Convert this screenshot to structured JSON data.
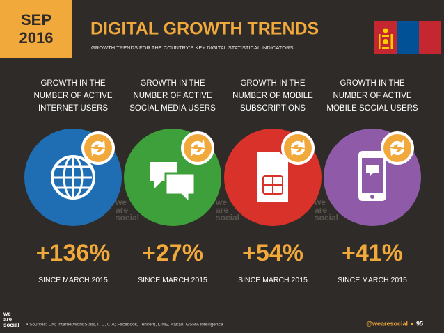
{
  "date": {
    "month": "SEP",
    "year": "2016"
  },
  "title": "DIGITAL GROWTH TRENDS",
  "subtitle": "GROWTH TRENDS FOR THE COUNTRY'S KEY DIGITAL STATISTICAL INDICATORS",
  "cards": [
    {
      "label": [
        "GROWTH IN THE",
        "NUMBER OF ACTIVE",
        "INTERNET USERS"
      ],
      "value": "+136%",
      "since": "SINCE MARCH 2015",
      "color": "#1f6db3"
    },
    {
      "label": [
        "GROWTH IN THE",
        "NUMBER OF ACTIVE",
        "SOCIAL MEDIA USERS"
      ],
      "value": "+27%",
      "since": "SINCE MARCH 2015",
      "color": "#3da03a"
    },
    {
      "label": [
        "GROWTH IN THE",
        "NUMBER OF MOBILE",
        "SUBSCRIPTIONS"
      ],
      "value": "+54%",
      "since": "SINCE MARCH 2015",
      "color": "#d8322b"
    },
    {
      "label": [
        "GROWTH IN THE",
        "NUMBER OF ACTIVE",
        "MOBILE SOCIAL USERS"
      ],
      "value": "+41%",
      "since": "SINCE MARCH 2015",
      "color": "#8f5ba8"
    }
  ],
  "watermark": [
    "we",
    "are",
    "social"
  ],
  "footer": {
    "sources": "• Sources: UN; InternetWorldStats, ITU, CIA; Facebook, Tencent, LINE, Kakao; GSMA Intelligence",
    "handle": "@wearesocial",
    "page": "95"
  }
}
